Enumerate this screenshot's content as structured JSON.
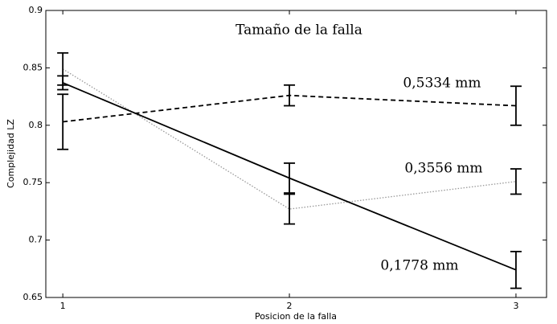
{
  "chart_data": {
    "type": "line",
    "title": "Tamaño de la falla",
    "xlabel": "Posicion de la falla",
    "ylabel": "Complejidad LZ",
    "x": [
      1,
      2,
      3
    ],
    "series": [
      {
        "name": "0,5334 mm",
        "color": "#000000",
        "dash": "dashed",
        "values": [
          0.803,
          0.826,
          0.817
        ],
        "errors": [
          0.024,
          0.009,
          0.017
        ]
      },
      {
        "name": "0,3556 mm",
        "color": "#999999",
        "dash": "dotted",
        "values": [
          0.849,
          0.727,
          0.751
        ],
        "errors": [
          0.014,
          0.013,
          0.011
        ]
      },
      {
        "name": "0,1778 mm",
        "color": "#000000",
        "dash": "solid",
        "values": [
          0.837,
          0.754,
          0.674
        ],
        "errors": [
          0.006,
          0.013,
          0.016
        ]
      }
    ],
    "xlim": [
      0.925,
      3.135
    ],
    "ylim": [
      0.65,
      0.9
    ],
    "xticks": [
      1,
      2,
      3
    ],
    "yticks": [
      0.65,
      0.7,
      0.75,
      0.8,
      0.85,
      0.9
    ],
    "grid": false
  }
}
